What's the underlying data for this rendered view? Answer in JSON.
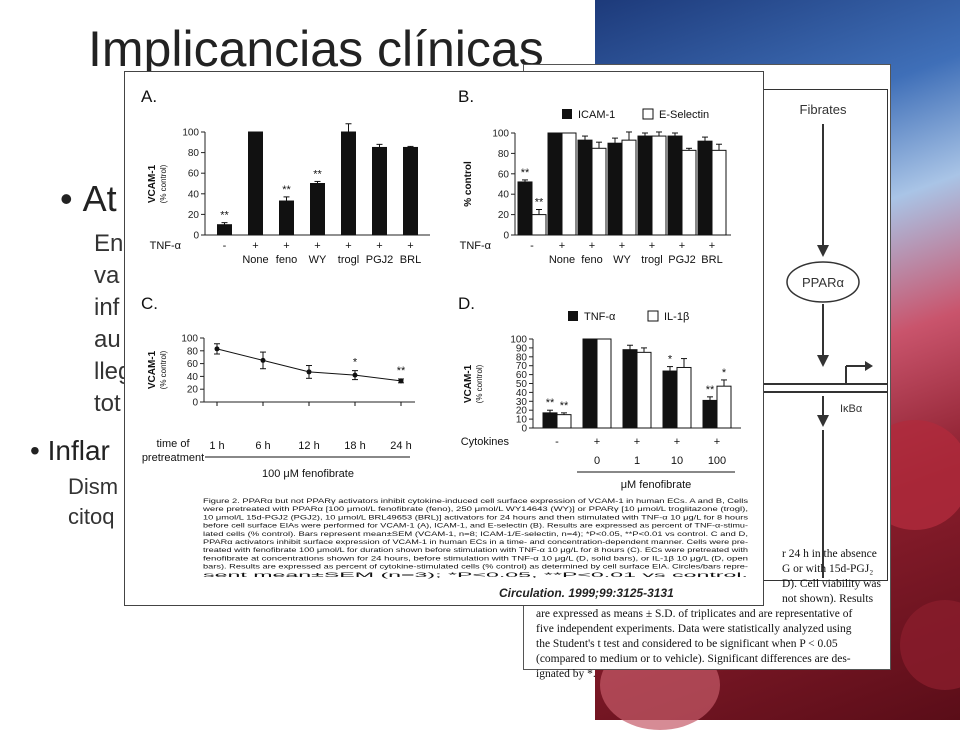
{
  "slide": {
    "title": "Implicancias clínicas",
    "bullets": [
      {
        "text": "At",
        "sub_lines": [
          "En",
          "va",
          "inf",
          "au",
          "lleg",
          "tot"
        ]
      },
      {
        "text": "Inflar",
        "sub_lines": [
          "Dism",
          "citoq"
        ]
      }
    ]
  },
  "back_paper": {
    "fibrates_label": "Fibrates",
    "ppar_label": "PPARα",
    "ikb_label": "IκBα",
    "body_lines": [
      "r 24 h in the absence",
      "G or with 15d-PGJ₂",
      "D). Cell viability was",
      "not shown). Results",
      "are expressed as means ± S.D. of triplicates and are representative of",
      "five independent experiments. Data were statistically analyzed using",
      "the Student's t test and considered to be significant when P < 0.05",
      "(compared to medium or to vehicle). Significant differences are des-",
      "ignated by *."
    ]
  },
  "figure": {
    "caption_lines": [
      "Figure 2. PPARα but not PPARγ activators inhibit cytokine-induced cell surface expression of VCAM-1 in human ECs. A and B, Cells",
      "were pretreated with PPARα [100 μmol/L fenofibrate (feno), 250 μmol/L WY14643 (WY)] or PPARγ [10 μmol/L troglitazone (trogl),",
      "10 μmol/L 15d-PGJ2 (PGJ2), 10 μmol/L BRL49653 (BRL)] activators for 24 hours and then stimulated with TNF-α 10 μg/L for 8 hours",
      "before cell surface EIAs were performed for VCAM-1 (A), ICAM-1, and E-selectin (B). Results are expressed as percent of TNF-α-stimu-",
      "lated cells (% control). Bars represent mean±SEM (VCAM-1, n=8; ICAM-1/E-selectin, n=4); *P<0.05, **P<0.01 vs control. C and D,",
      "PPARα activators inhibit surface expression of VCAM-1 in human ECs in a time- and concentration-dependent manner. Cells were pre-",
      "treated with fenofibrate 100 μmol/L for duration shown before stimulation with TNF-α 10 μg/L for 8 hours (C). ECs were pretreated with",
      "fenofibrate at concentrations shown for 24 hours, before stimulation with TNF-α 10 μg/L (D, solid bars), or IL-1β 10 μg/L (D, open",
      "bars). Results are expressed as percent of cytokine-stimulated cells (% control) as determined by cell surface EIA. Circles/bars repre-",
      "sent mean±SEM (n=3); *P<0.05, **P<0.01 vs control."
    ],
    "citation": "Circulation. 1999;99:3125-3131"
  },
  "chart_data": [
    {
      "panel": "A.",
      "type": "bar",
      "ylabel": "VCAM-1",
      "ylabel2": "(% control)",
      "ylim": [
        0,
        100
      ],
      "yticks": [
        "0",
        "20",
        "40",
        "60",
        "80",
        "100"
      ],
      "row_label": "TNF-α",
      "tnf": [
        "-",
        "+",
        "+",
        "+",
        "+",
        "+",
        "+"
      ],
      "categories": [
        "",
        "None",
        "feno",
        "WY",
        "trogl",
        "PGJ2",
        "BRL"
      ],
      "values": [
        10,
        100,
        33,
        50,
        100,
        85,
        85
      ],
      "errors": [
        2,
        0,
        4,
        2,
        8,
        3,
        1
      ],
      "marks": [
        "**",
        "",
        "**",
        "**",
        "",
        "",
        ""
      ]
    },
    {
      "panel": "B.",
      "type": "bar",
      "ylabel": "% control",
      "ylim": [
        0,
        100
      ],
      "yticks": [
        "0",
        "20",
        "40",
        "60",
        "80",
        "100"
      ],
      "row_label": "TNF-α",
      "tnf": [
        "-",
        "+",
        "+",
        "+",
        "+",
        "+",
        "+"
      ],
      "categories": [
        "",
        "None",
        "feno",
        "WY",
        "trogl",
        "PGJ2",
        "BRL"
      ],
      "legend": [
        "ICAM-1",
        "E-Selectin"
      ],
      "series": [
        {
          "name": "ICAM-1",
          "values": [
            52,
            100,
            93,
            90,
            97,
            97,
            92
          ],
          "errors": [
            2,
            0,
            4,
            5,
            3,
            3,
            4
          ],
          "marks": [
            "**",
            "",
            "",
            "",
            "",
            "",
            ""
          ]
        },
        {
          "name": "E-Selectin",
          "values": [
            20,
            100,
            85,
            93,
            97,
            83,
            83
          ],
          "errors": [
            5,
            0,
            6,
            8,
            4,
            2,
            6
          ],
          "marks": [
            "**",
            "",
            "",
            "",
            "",
            "",
            ""
          ]
        }
      ]
    },
    {
      "panel": "C.",
      "type": "line",
      "ylabel": "VCAM-1",
      "ylabel2": "(% control)",
      "ylim": [
        0,
        100
      ],
      "yticks": [
        "0",
        "20",
        "40",
        "60",
        "80",
        "100"
      ],
      "row_label": "time of pretreatment",
      "x": [
        "1 h",
        "6 h",
        "12 h",
        "18 h",
        "24 h"
      ],
      "values": [
        83,
        65,
        47,
        42,
        33
      ],
      "errors": [
        8,
        13,
        10,
        7,
        3
      ],
      "marks": [
        "",
        "",
        "",
        "*",
        "**"
      ],
      "xlabel": "100 μM fenofibrate"
    },
    {
      "panel": "D.",
      "type": "bar",
      "ylabel": "VCAM-1",
      "ylabel2": "(% control)",
      "ylim": [
        0,
        100
      ],
      "yticks": [
        "0",
        "10",
        "20",
        "30",
        "40",
        "50",
        "60",
        "70",
        "80",
        "90",
        "100"
      ],
      "row_label": "Cytokines",
      "cytokines": [
        "-",
        "+",
        "+",
        "+",
        "+"
      ],
      "categories": [
        "",
        "0",
        "1",
        "10",
        "100"
      ],
      "legend": [
        "TNF-α",
        "IL-1β"
      ],
      "series": [
        {
          "name": "TNF-α",
          "values": [
            17,
            100,
            88,
            64,
            31
          ],
          "errors": [
            3,
            0,
            5,
            5,
            4
          ],
          "marks": [
            "**",
            "",
            "",
            "*",
            "**"
          ]
        },
        {
          "name": "IL-1β",
          "values": [
            15,
            100,
            85,
            68,
            47
          ],
          "errors": [
            2,
            0,
            5,
            10,
            7
          ],
          "marks": [
            "**",
            "",
            "",
            "",
            "*"
          ]
        }
      ],
      "xlabel": "μM fenofibrate"
    }
  ]
}
